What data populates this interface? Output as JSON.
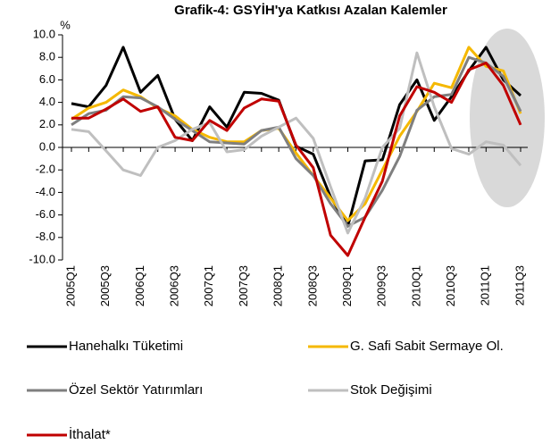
{
  "chart_data": {
    "type": "line",
    "title": "Grafik-4: GSYİH'ya Katkısı Azalan Kalemler",
    "y_unit": "%",
    "categories": [
      "2005Q1",
      null,
      "2005Q3",
      null,
      "2006Q1",
      null,
      "2006Q3",
      null,
      "2007Q1",
      null,
      "2007Q3",
      null,
      "2008Q1",
      null,
      "2008Q3",
      null,
      "2009Q1",
      null,
      "2009Q3",
      null,
      "2010Q1",
      null,
      "2010Q3",
      null,
      "2011Q1",
      null,
      "2011Q3"
    ],
    "ylim": [
      -10,
      10
    ],
    "yticks": [
      {
        "value": 10,
        "label": "10.0"
      },
      {
        "value": 8,
        "label": "8.0"
      },
      {
        "value": 6,
        "label": "6.0"
      },
      {
        "value": 4,
        "label": "4.0"
      },
      {
        "value": 2,
        "label": "2.0"
      },
      {
        "value": 0,
        "label": "0.0"
      },
      {
        "value": -2,
        "label": "-2.0"
      },
      {
        "value": -4,
        "label": "-4.0"
      },
      {
        "value": -6,
        "label": "-6.0"
      },
      {
        "value": -8,
        "label": "-8.0"
      },
      {
        "value": -10,
        "label": "-10.0"
      }
    ],
    "grid": false,
    "series": [
      {
        "name": "Hanehalkı Tüketimi",
        "color": "#000000",
        "values": [
          3.9,
          3.6,
          5.5,
          8.9,
          4.9,
          6.4,
          2.5,
          0.6,
          3.6,
          1.8,
          4.9,
          4.8,
          4.2,
          0.1,
          -0.6,
          -4.4,
          -7.0,
          -1.2,
          -1.1,
          3.8,
          6.0,
          2.4,
          4.5,
          6.8,
          8.9,
          6.0,
          4.6
        ]
      },
      {
        "name": "G. Safi Sabit Sermaye Ol.",
        "color": "#f5b800",
        "values": [
          2.5,
          3.5,
          4.0,
          5.1,
          4.5,
          3.5,
          2.8,
          1.6,
          0.9,
          0.5,
          0.5,
          1.5,
          1.7,
          -0.5,
          -2.5,
          -4.5,
          -6.5,
          -5.0,
          -2.0,
          1.0,
          3.2,
          5.7,
          5.3,
          8.9,
          7.2,
          6.8,
          3.0
        ]
      },
      {
        "name": "Özel Sektör Yatırımları",
        "color": "#7f7f7f",
        "values": [
          2.0,
          3.0,
          3.3,
          4.5,
          4.4,
          3.6,
          2.5,
          1.5,
          0.5,
          0.4,
          0.3,
          1.5,
          1.8,
          -1.0,
          -2.5,
          -5.0,
          -7.0,
          -6.2,
          -3.8,
          -0.8,
          3.3,
          4.5,
          4.7,
          8.0,
          7.5,
          6.3,
          3.2
        ]
      },
      {
        "name": "Stok Değişimi",
        "color": "#bfbfbf",
        "values": [
          1.6,
          1.4,
          -0.3,
          -2.0,
          -2.5,
          0.0,
          0.6,
          1.6,
          2.2,
          -0.4,
          -0.2,
          1.0,
          1.8,
          2.6,
          0.8,
          -3.5,
          -7.6,
          -4.5,
          0.0,
          1.7,
          8.4,
          3.6,
          -0.1,
          -0.6,
          0.5,
          0.2,
          -1.6
        ]
      },
      {
        "name": "İthalat*",
        "color": "#c00000",
        "values": [
          2.6,
          2.6,
          3.4,
          4.3,
          3.2,
          3.6,
          0.9,
          0.6,
          2.4,
          1.5,
          3.5,
          4.3,
          4.1,
          0.2,
          -1.8,
          -7.8,
          -9.6,
          -6.2,
          -3.0,
          2.8,
          5.4,
          4.9,
          4.0,
          6.9,
          7.5,
          5.5,
          2.0
        ]
      }
    ]
  }
}
